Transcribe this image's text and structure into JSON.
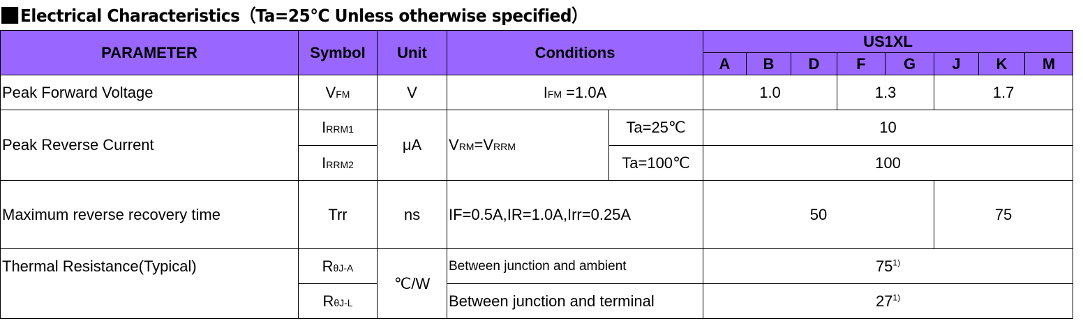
{
  "title": "Electrical Characteristics（Ta=25℃ Unless otherwise specified）",
  "header": {
    "parameter": "PARAMETER",
    "symbol": "Symbol",
    "unit": "Unit",
    "conditions": "Conditions",
    "part": "US1XL",
    "grades": [
      "A",
      "B",
      "D",
      "F",
      "G",
      "J",
      "K",
      "M"
    ]
  },
  "colors": {
    "header_bg": "#9966ff"
  },
  "rows": {
    "vf": {
      "param": "Peak Forward Voltage",
      "sym": "V",
      "sym_sub": "FM",
      "unit": "V",
      "cond": "I",
      "cond_sub": "FM",
      "cond_rest": " =1.0A",
      "values": [
        "1.0",
        "1.3",
        "1.7"
      ]
    },
    "ir": {
      "param": "Peak Reverse Current",
      "sym1": "I",
      "sym1_sub": "RRM1",
      "sym2": "I",
      "sym2_sub": "RRM2",
      "unit": "μA",
      "cond_a": "V",
      "cond_a_sub": "RM",
      "cond_b": "=V",
      "cond_b_sub": "RRM",
      "temp1": "Ta=25℃",
      "temp2": "Ta=100℃",
      "val1": "10",
      "val2": "100"
    },
    "trr": {
      "param": "Maximum reverse recovery time",
      "sym": "Trr",
      "unit": "ns",
      "cond": "IF=0.5A,IR=1.0A,Irr=0.25A",
      "values": [
        "50",
        "75"
      ]
    },
    "rth": {
      "param": "Thermal Resistance(Typical)",
      "sym1": "R",
      "sym1_sub": "θJ-A",
      "sym2": "R",
      "sym2_sub": "θJ-L",
      "unit": "℃/W",
      "cond1": "Between junction and ambient",
      "cond2": "Between junction and terminal",
      "val1": "75",
      "val2": "27",
      "note": "1)"
    }
  }
}
